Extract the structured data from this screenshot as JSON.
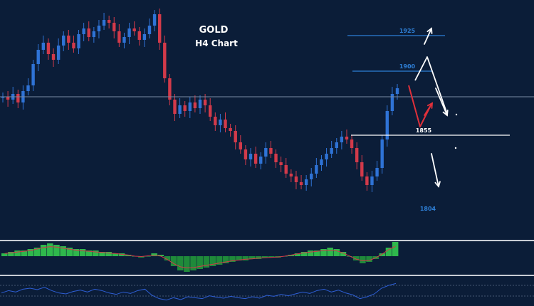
{
  "colors": {
    "background": "#0b1d38",
    "bull_candle": "#2f73d6",
    "bear_candle": "#d23a4a",
    "level_blue": "#2e7fd6",
    "level_white": "#ffffff",
    "price_line": "#7a8aa3",
    "macd_up": "#2fb84c",
    "macd_down": "#1f8a3a",
    "macd_signal": "#d23a4a",
    "rsi_line": "#2e5fd6",
    "panel_separator": "#c8ccd4",
    "arrow_white": "#ffffff",
    "arrow_red": "#e0303a"
  },
  "chart_data": {
    "type": "candlestick",
    "title": "GOLD",
    "subtitle": "H4 Chart",
    "levels": [
      {
        "label": "1925",
        "value": 1925,
        "style": "blue"
      },
      {
        "label": "1900",
        "value": 1900,
        "style": "blue"
      },
      {
        "label": "1855",
        "value": 1855,
        "style": "white"
      },
      {
        "label": "1804",
        "value": 1804,
        "style": "blue"
      }
    ],
    "current_price": 1882,
    "ylim": [
      1800,
      1945
    ],
    "close_path": [
      1882,
      1880,
      1884,
      1878,
      1886,
      1890,
      1905,
      1915,
      1920,
      1912,
      1908,
      1918,
      1925,
      1920,
      1916,
      1926,
      1930,
      1924,
      1928,
      1932,
      1936,
      1934,
      1928,
      1920,
      1924,
      1930,
      1928,
      1922,
      1926,
      1932,
      1940,
      1920,
      1895,
      1880,
      1870,
      1876,
      1872,
      1878,
      1874,
      1880,
      1876,
      1868,
      1862,
      1866,
      1860,
      1858,
      1850,
      1845,
      1838,
      1842,
      1835,
      1840,
      1846,
      1842,
      1836,
      1834,
      1828,
      1826,
      1822,
      1820,
      1824,
      1828,
      1834,
      1838,
      1842,
      1846,
      1850,
      1854,
      1852,
      1846,
      1836,
      1826,
      1820,
      1826,
      1832,
      1852,
      1872,
      1884,
      1888
    ],
    "projections": [
      {
        "name": "up-target",
        "points": [
          [
            1865,
            1880
          ],
          [
            1935,
            1938
          ]
        ]
      },
      {
        "name": "pullback",
        "points": [
          [
            1885,
            1868
          ],
          [
            1880,
            1875
          ]
        ]
      },
      {
        "name": "down-target",
        "points": [
          [
            1850,
            1810
          ]
        ]
      }
    ],
    "macd_histogram": [
      2,
      3,
      4,
      4,
      5,
      6,
      8,
      9,
      8,
      7,
      6,
      5,
      5,
      4,
      4,
      3,
      3,
      2,
      2,
      1,
      0,
      -1,
      0,
      2,
      1,
      -3,
      -7,
      -10,
      -11,
      -10,
      -9,
      -8,
      -7,
      -6,
      -5,
      -4,
      -3,
      -3,
      -2,
      -2,
      -1,
      -1,
      -1,
      0,
      1,
      2,
      3,
      4,
      4,
      5,
      6,
      5,
      3,
      0,
      -3,
      -5,
      -4,
      -2,
      2,
      6,
      10
    ],
    "rsi": [
      50,
      55,
      52,
      58,
      60,
      57,
      62,
      55,
      50,
      48,
      53,
      56,
      52,
      58,
      55,
      50,
      47,
      52,
      49,
      55,
      58,
      45,
      38,
      35,
      40,
      36,
      42,
      40,
      38,
      44,
      41,
      39,
      43,
      40,
      38,
      42,
      39,
      45,
      43,
      47,
      44,
      48,
      52,
      49,
      55,
      58,
      52,
      56,
      50,
      46,
      38,
      42,
      48,
      60,
      66,
      70
    ]
  }
}
